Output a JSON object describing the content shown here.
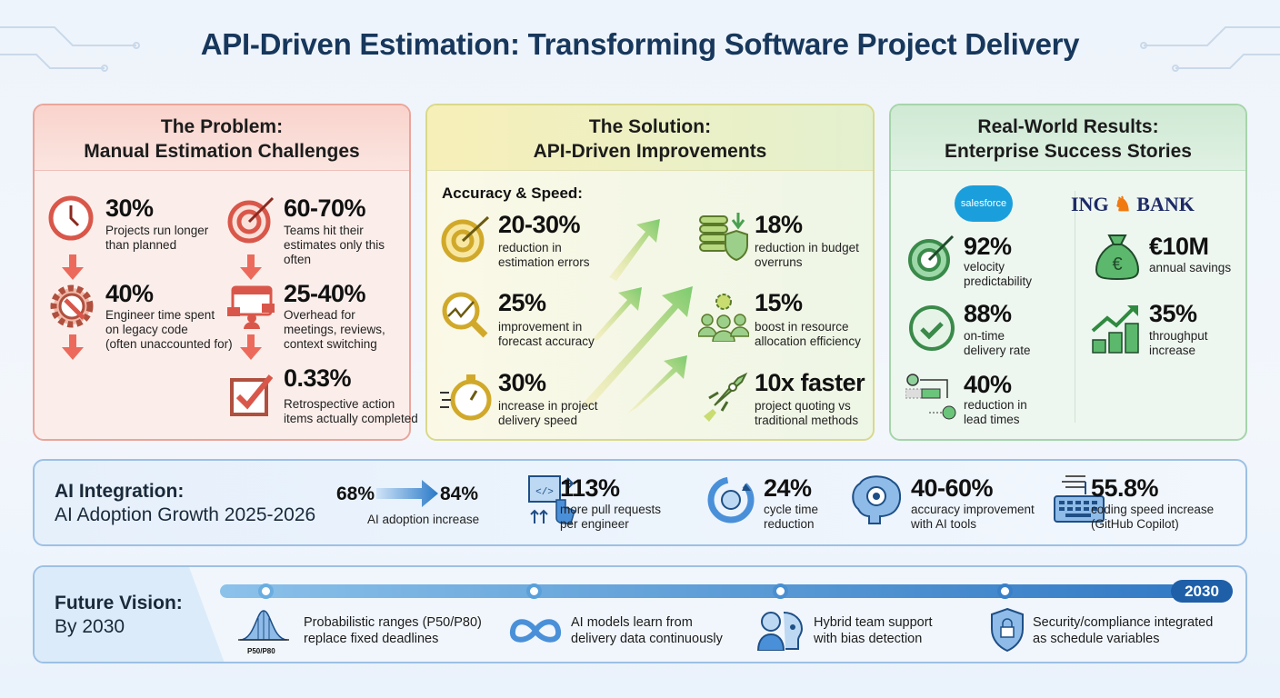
{
  "title": "API-Driven Estimation: Transforming Software Project Delivery",
  "colors": {
    "problem": "#d9574a",
    "solution": "#e2c94a",
    "results": "#3fa45a",
    "ai": "#3a86c8",
    "title": "#17375c"
  },
  "problem": {
    "title_line1": "The Problem:",
    "title_line2": "Manual Estimation Challenges",
    "stats": [
      {
        "value": "30%",
        "label1": "Projects run longer",
        "label2": "than planned",
        "label3": "",
        "icon": "clock-icon"
      },
      {
        "value": "60-70%",
        "label1": "Teams hit their",
        "label2": "estimates only this",
        "label3": "often",
        "icon": "target-icon"
      },
      {
        "value": "40%",
        "label1": "Engineer time spent",
        "label2": "on legacy code",
        "label3": "(often unaccounted for)",
        "icon": "gear-wrench-icon"
      },
      {
        "value": "25-40%",
        "label1": "Overhead for",
        "label2": "meetings, reviews,",
        "label3": "context switching",
        "icon": "calendar-meeting-icon"
      },
      {
        "value": "0.33%",
        "label1": "Retrospective action",
        "label2": "items actually completed",
        "label3": "",
        "icon": "checkbox-icon"
      }
    ]
  },
  "solution": {
    "title_line1": "The Solution:",
    "title_line2": "API-Driven Improvements",
    "subheading": "Accuracy & Speed:",
    "stats": [
      {
        "value": "20-30%",
        "label1": "reduction in",
        "label2": "estimation errors",
        "icon": "target-icon"
      },
      {
        "value": "25%",
        "label1": "improvement in",
        "label2": "forecast accuracy",
        "icon": "magnifier-chart-icon"
      },
      {
        "value": "30%",
        "label1": "increase in project",
        "label2": "delivery speed",
        "icon": "stopwatch-icon"
      },
      {
        "value": "18%",
        "label1": "reduction in budget",
        "label2": "overruns",
        "icon": "coins-shield-icon"
      },
      {
        "value": "15%",
        "label1": "boost in resource",
        "label2": "allocation efficiency",
        "icon": "team-gear-icon"
      },
      {
        "value": "10x faster",
        "label1": "project quoting vs",
        "label2": "traditional methods",
        "icon": "rocket-icon"
      }
    ]
  },
  "results": {
    "title_line1": "Real-World Results:",
    "title_line2": "Enterprise Success Stories",
    "salesforce": {
      "logo": "salesforce",
      "stats": [
        {
          "value": "92%",
          "label1": "velocity",
          "label2": "predictability",
          "icon": "target-icon"
        },
        {
          "value": "88%",
          "label1": "on-time",
          "label2": "delivery rate",
          "icon": "clock-check-icon"
        },
        {
          "value": "40%",
          "label1": "reduction in",
          "label2": "lead times",
          "icon": "lead-time-icon"
        }
      ]
    },
    "ing": {
      "logo_left": "ING",
      "logo_right": "BANK",
      "stats": [
        {
          "value": "€10M",
          "label1": "annual savings",
          "label2": "",
          "icon": "money-bag-icon"
        },
        {
          "value": "35%",
          "label1": "throughput",
          "label2": "increase",
          "icon": "growth-chart-icon"
        }
      ]
    }
  },
  "ai": {
    "heading": "AI Integration:",
    "subheading": "AI Adoption Growth 2025-2026",
    "from": "68%",
    "to": "84%",
    "adoption_label": "AI adoption increase",
    "stats": [
      {
        "value": "113%",
        "label1": "more pull requests",
        "label2": "per engineer",
        "icon": "code-window-icon"
      },
      {
        "value": "24%",
        "label1": "cycle time",
        "label2": "reduction",
        "icon": "cycle-icon"
      },
      {
        "value": "40-60%",
        "label1": "accuracy improvement",
        "label2": "with AI tools",
        "icon": "brain-target-icon"
      },
      {
        "value": "55.8%",
        "label1": "coding speed increase",
        "label2": "(GitHub Copilot)",
        "icon": "keyboard-icon"
      }
    ]
  },
  "future": {
    "heading": "Future Vision:",
    "subheading": "By 2030",
    "year": "2030",
    "items": [
      {
        "line1": "Probabilistic ranges (P50/P80)",
        "line2": "replace fixed deadlines",
        "icon": "bell-curve-icon",
        "icon_label": "P50/P80"
      },
      {
        "line1": "AI models learn from",
        "line2": "delivery data continuously",
        "icon": "infinity-loop-icon"
      },
      {
        "line1": "Hybrid team support",
        "line2": "with bias detection",
        "icon": "human-ai-icon"
      },
      {
        "line1": "Security/compliance integrated",
        "line2": "as schedule variables",
        "icon": "shield-lock-icon"
      }
    ]
  }
}
